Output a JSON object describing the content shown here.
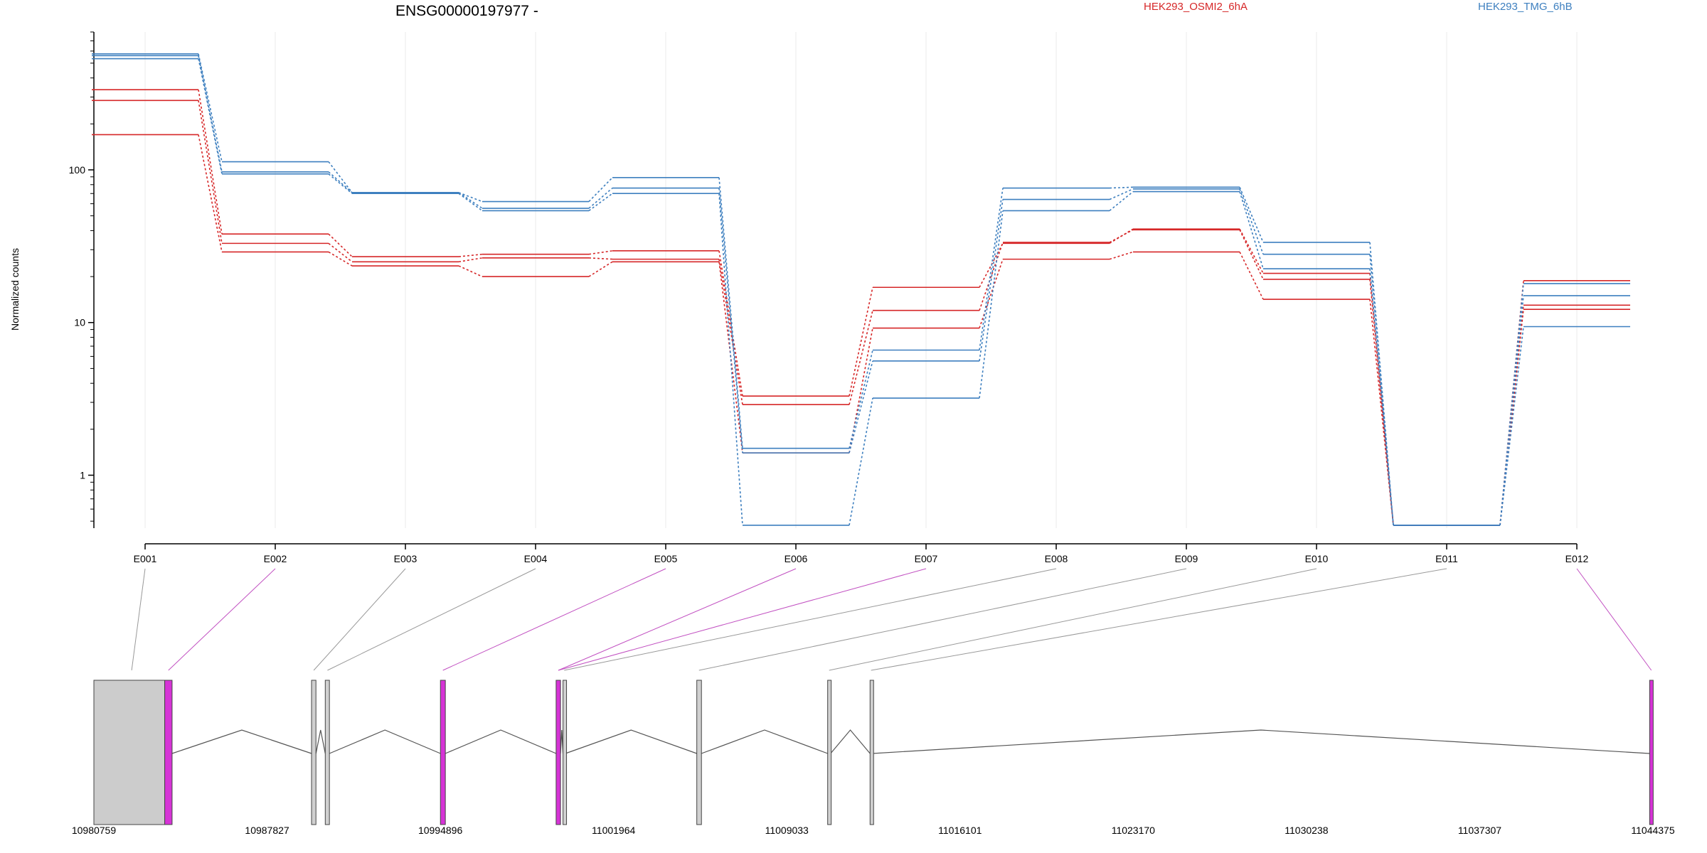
{
  "chart_data": {
    "type": "line",
    "title": "ENSG00000197977 -",
    "ylabel": "Normalized counts",
    "yscale": "log",
    "ylim": [
      0.45,
      800
    ],
    "yticks": [
      {
        "value": 1,
        "label": "1"
      },
      {
        "value": 10,
        "label": "10"
      },
      {
        "value": 100,
        "label": "100"
      }
    ],
    "categories": [
      "E001",
      "E002",
      "E003",
      "E004",
      "E005",
      "E006",
      "E007",
      "E008",
      "E009",
      "E010",
      "E011",
      "E012"
    ],
    "grid": true,
    "legend": [
      {
        "name": "HEK293_OSMI2_6hA",
        "color": "#d62728"
      },
      {
        "name": "HEK293_TMG_6hB",
        "color": "#3d7fbf"
      }
    ],
    "series": [
      {
        "group": "HEK293_OSMI2_6hA",
        "values": [
          335,
          38,
          27,
          28,
          29.5,
          3.3,
          17,
          33,
          41,
          21,
          0.47,
          18.8
        ]
      },
      {
        "group": "HEK293_OSMI2_6hA",
        "values": [
          285,
          33,
          25,
          26.5,
          26,
          2.9,
          12,
          33.5,
          40.5,
          19.2,
          0.47,
          13
        ]
      },
      {
        "group": "HEK293_OSMI2_6hA",
        "values": [
          170,
          29,
          23.5,
          20,
          25,
          1.4,
          9.2,
          26,
          29,
          14.2,
          0.47,
          12.2
        ]
      },
      {
        "group": "HEK293_TMG_6hB",
        "values": [
          575,
          113,
          71,
          62,
          89,
          1.5,
          6.6,
          76,
          77,
          33.5,
          0.47,
          18
        ]
      },
      {
        "group": "HEK293_TMG_6hB",
        "values": [
          560,
          97,
          71,
          56,
          76,
          1.4,
          5.6,
          64,
          75,
          28,
          0.47,
          15
        ]
      },
      {
        "group": "HEK293_TMG_6hB",
        "values": [
          535,
          94,
          70,
          54,
          70,
          0.47,
          3.2,
          54,
          72,
          22.5,
          0.47,
          9.4
        ]
      }
    ],
    "gene_model": {
      "coord_min": 10980759,
      "coord_max": 11044375,
      "coord_ticks": [
        "10980759",
        "10987827",
        "10994896",
        "11001964",
        "11009033",
        "11016101",
        "11023170",
        "11030238",
        "11037307",
        "11044375"
      ],
      "exons": [
        {
          "start": 10980759,
          "end": 10983650,
          "kind": "utr"
        },
        {
          "start": 10983650,
          "end": 10983950,
          "kind": "tested"
        },
        {
          "start": 10989640,
          "end": 10989820,
          "kind": "plain"
        },
        {
          "start": 10990200,
          "end": 10990370,
          "kind": "plain"
        },
        {
          "start": 10994900,
          "end": 10995100,
          "kind": "tested"
        },
        {
          "start": 10999620,
          "end": 10999800,
          "kind": "tested"
        },
        {
          "start": 10999900,
          "end": 11000000,
          "kind": "plain"
        },
        {
          "start": 11005360,
          "end": 11005550,
          "kind": "plain"
        },
        {
          "start": 11010700,
          "end": 11010820,
          "kind": "plain"
        },
        {
          "start": 11012430,
          "end": 11012520,
          "kind": "plain"
        },
        {
          "start": 11044240,
          "end": 11044375,
          "kind": "tested"
        }
      ],
      "bin_links": [
        {
          "bin": "E001",
          "coord": 10982300,
          "kind": "plain"
        },
        {
          "bin": "E002",
          "coord": 10983800,
          "kind": "tested"
        },
        {
          "bin": "E003",
          "coord": 10989730,
          "kind": "plain"
        },
        {
          "bin": "E004",
          "coord": 10990290,
          "kind": "plain"
        },
        {
          "bin": "E005",
          "coord": 10995000,
          "kind": "tested"
        },
        {
          "bin": "E006",
          "coord": 10999710,
          "kind": "tested"
        },
        {
          "bin": "E007",
          "coord": 10999710,
          "kind": "tested"
        },
        {
          "bin": "E008",
          "coord": 10999950,
          "kind": "plain"
        },
        {
          "bin": "E009",
          "coord": 11005450,
          "kind": "plain"
        },
        {
          "bin": "E010",
          "coord": 11010760,
          "kind": "plain"
        },
        {
          "bin": "E011",
          "coord": 11012470,
          "kind": "plain"
        },
        {
          "bin": "E012",
          "coord": 11044310,
          "kind": "tested"
        }
      ]
    }
  },
  "colors": {
    "osmi": "#d62728",
    "tmg": "#3d7fbf",
    "tested_exon": "#d633d6",
    "tested_link": "#c14fc1",
    "utr": "#cccccc",
    "plain_exon": "#d0d0d0",
    "intron": "#555555"
  }
}
